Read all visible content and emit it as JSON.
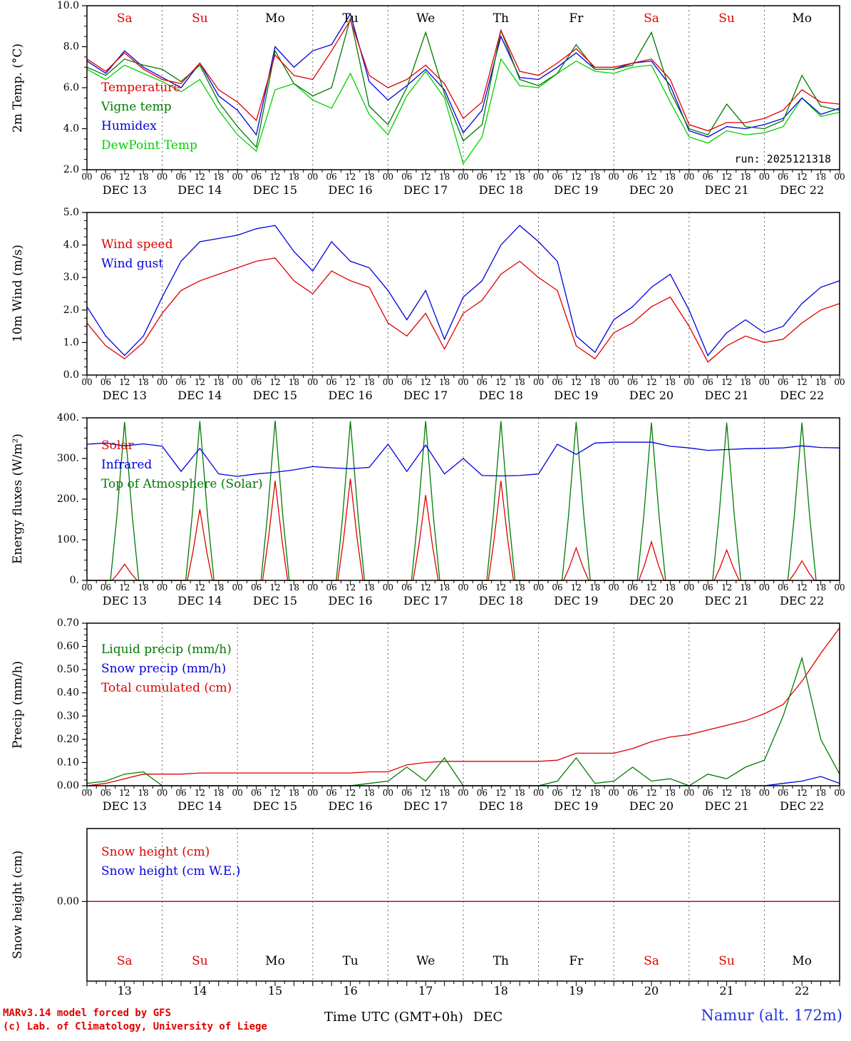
{
  "run_label": "run: 2025121318",
  "footer": {
    "credit_line1": "MARv3.14 model forced by GFS",
    "credit_line2": "(c) Lab. of Climatology, University of Liege",
    "xlabel": "Time UTC (GMT+0h)",
    "xlabel_month": "DEC",
    "station": "Namur (alt. 172m)"
  },
  "colors": {
    "red": "#e00000",
    "blue": "#0000dd",
    "dark_green": "#007a00",
    "bright_green": "#00d000",
    "weekend": "#dd0000",
    "station_blue": "#2233dd"
  },
  "day_names": [
    "Sa",
    "Su",
    "Mo",
    "Tu",
    "We",
    "Th",
    "Fr",
    "Sa",
    "Su",
    "Mo"
  ],
  "weekend_flags": [
    true,
    true,
    false,
    false,
    false,
    false,
    false,
    true,
    true,
    false
  ],
  "day_dates": [
    "DEC 13",
    "DEC 14",
    "DEC 15",
    "DEC 16",
    "DEC 17",
    "DEC 18",
    "DEC 19",
    "DEC 20",
    "DEC 21",
    "DEC 22"
  ],
  "day_numbers": [
    "13",
    "14",
    "15",
    "16",
    "17",
    "18",
    "19",
    "20",
    "21",
    "22"
  ],
  "hour_tick_labels": [
    "00",
    "06",
    "12",
    "18"
  ],
  "x_hours": [
    0,
    6,
    12,
    18,
    24,
    30,
    36,
    42,
    48,
    54,
    60,
    66,
    72,
    78,
    84,
    90,
    96,
    102,
    108,
    114,
    120,
    126,
    132,
    138,
    144,
    150,
    156,
    162,
    168,
    174,
    180,
    186,
    192,
    198,
    204,
    210,
    216,
    222,
    228,
    234,
    240
  ],
  "chart_data": [
    {
      "name": "temperature",
      "type": "line",
      "ylabel": "2m Temp. (°C)",
      "ylim": [
        2,
        10
      ],
      "yticks": [
        2,
        4,
        6,
        8,
        10
      ],
      "ytick_labels": [
        "2.0",
        "4.0",
        "6.0",
        "8.0",
        "10.0"
      ],
      "yminor": 0.5,
      "x_range_hours": [
        0,
        240
      ],
      "grid": "dashed-day-boundaries",
      "legend_position": "mid-left",
      "series": [
        {
          "name": "Temperature",
          "color": "#e00000",
          "values": [
            7.4,
            6.8,
            7.7,
            6.9,
            6.4,
            6.2,
            7.2,
            5.9,
            5.3,
            4.4,
            7.6,
            6.6,
            6.4,
            7.8,
            9.3,
            6.6,
            6.0,
            6.4,
            7.1,
            6.2,
            4.5,
            5.3,
            8.8,
            6.8,
            6.6,
            7.2,
            7.9,
            7.0,
            7.0,
            7.2,
            7.4,
            6.4,
            4.2,
            3.9,
            4.3,
            4.3,
            4.5,
            4.9,
            5.9,
            5.3,
            5.2
          ]
        },
        {
          "name": "Vigne temp",
          "color": "#007a00",
          "values": [
            7.0,
            6.6,
            7.4,
            7.1,
            6.9,
            6.3,
            7.1,
            5.3,
            4.1,
            3.1,
            7.8,
            6.2,
            5.6,
            6.0,
            9.4,
            5.1,
            4.2,
            6.0,
            8.7,
            5.7,
            3.4,
            4.2,
            8.8,
            6.4,
            6.1,
            6.7,
            8.1,
            6.9,
            6.9,
            7.1,
            8.7,
            5.8,
            4.0,
            3.7,
            5.2,
            4.1,
            4.0,
            4.4,
            6.6,
            5.1,
            4.9
          ]
        },
        {
          "name": "Humidex",
          "color": "#0000dd",
          "values": [
            7.3,
            6.7,
            7.8,
            7.0,
            6.5,
            6.0,
            7.2,
            5.6,
            4.9,
            3.7,
            8.0,
            7.0,
            7.8,
            8.1,
            9.6,
            6.3,
            5.4,
            6.1,
            6.9,
            5.9,
            3.8,
            4.9,
            8.5,
            6.5,
            6.4,
            7.0,
            7.7,
            6.9,
            6.9,
            7.2,
            7.3,
            6.1,
            3.9,
            3.6,
            4.1,
            4.0,
            4.2,
            4.5,
            5.5,
            4.7,
            5.0
          ]
        },
        {
          "name": "DewPoint Temp",
          "color": "#00d000",
          "values": [
            6.9,
            6.4,
            7.1,
            6.7,
            6.3,
            5.8,
            6.4,
            4.9,
            3.7,
            2.9,
            5.9,
            6.2,
            5.4,
            5.0,
            6.7,
            4.7,
            3.7,
            5.6,
            6.8,
            5.5,
            2.3,
            3.6,
            7.4,
            6.1,
            6.0,
            6.7,
            7.3,
            6.8,
            6.7,
            7.0,
            7.1,
            5.3,
            3.6,
            3.3,
            3.9,
            3.7,
            3.8,
            4.1,
            5.5,
            4.6,
            4.8
          ]
        }
      ]
    },
    {
      "name": "wind",
      "type": "line",
      "ylabel": "10m Wind (m/s)",
      "ylim": [
        0,
        5
      ],
      "yticks": [
        0,
        1,
        2,
        3,
        4,
        5
      ],
      "ytick_labels": [
        "0.0",
        "1.0",
        "2.0",
        "3.0",
        "4.0",
        "5.0"
      ],
      "yminor": 0.25,
      "x_range_hours": [
        0,
        240
      ],
      "grid": "dashed-day-boundaries",
      "legend_position": "top-left",
      "series": [
        {
          "name": "Wind speed",
          "color": "#e00000",
          "values": [
            1.6,
            0.9,
            0.5,
            1.0,
            1.9,
            2.6,
            2.9,
            3.1,
            3.3,
            3.5,
            3.6,
            2.9,
            2.5,
            3.2,
            2.9,
            2.7,
            1.6,
            1.2,
            1.9,
            0.8,
            1.9,
            2.3,
            3.1,
            3.5,
            3.0,
            2.6,
            0.9,
            0.5,
            1.3,
            1.6,
            2.1,
            2.4,
            1.5,
            0.4,
            0.9,
            1.2,
            1.0,
            1.1,
            1.6,
            2.0,
            2.2
          ]
        },
        {
          "name": "Wind gust",
          "color": "#0000dd",
          "values": [
            2.1,
            1.2,
            0.6,
            1.2,
            2.4,
            3.5,
            4.1,
            4.2,
            4.3,
            4.5,
            4.6,
            3.8,
            3.2,
            4.1,
            3.5,
            3.3,
            2.6,
            1.7,
            2.6,
            1.1,
            2.4,
            2.9,
            4.0,
            4.6,
            4.1,
            3.5,
            1.2,
            0.7,
            1.7,
            2.1,
            2.7,
            3.1,
            2.0,
            0.6,
            1.3,
            1.7,
            1.3,
            1.5,
            2.2,
            2.7,
            2.9
          ]
        }
      ]
    },
    {
      "name": "energy",
      "type": "line",
      "ylabel": "Energy fluxes (W/m²)",
      "ylim": [
        0,
        400
      ],
      "yticks": [
        0,
        100,
        200,
        300,
        400
      ],
      "ytick_labels": [
        "0.",
        "100.",
        "200.",
        "300.",
        "400."
      ],
      "yminor": 25,
      "x_range_hours": [
        0,
        240
      ],
      "grid": "dashed-day-boundaries",
      "legend_position": "top-left",
      "series": [
        {
          "name": "Solar",
          "color": "#e00000",
          "daily_peaks": [
            40,
            175,
            245,
            250,
            210,
            245,
            80,
            95,
            75,
            48
          ],
          "bell_halfwidth_hours": 4.0
        },
        {
          "name": "Infrared",
          "color": "#0000dd",
          "values": [
            335,
            338,
            331,
            336,
            330,
            268,
            325,
            262,
            256,
            262,
            266,
            272,
            280,
            277,
            275,
            278,
            335,
            268,
            333,
            262,
            300,
            258,
            257,
            258,
            262,
            335,
            310,
            338,
            340,
            340,
            340,
            330,
            326,
            320,
            322,
            324,
            325,
            326,
            331,
            327,
            326
          ]
        },
        {
          "name": "Top of Atmosphere (Solar)",
          "color": "#007a00",
          "daily_peaks": [
            390,
            392,
            393,
            392,
            392,
            392,
            390,
            388,
            388,
            388
          ],
          "bell_halfwidth_hours": 4.5
        }
      ]
    },
    {
      "name": "precip",
      "type": "line",
      "ylabel": "Precip (mm/h)",
      "ylim": [
        0,
        0.7
      ],
      "yticks": [
        0,
        0.1,
        0.2,
        0.3,
        0.4,
        0.5,
        0.6,
        0.7
      ],
      "ytick_labels": [
        "0.00",
        "0.10",
        "0.20",
        "0.30",
        "0.40",
        "0.50",
        "0.60",
        "0.70"
      ],
      "yminor": 0.025,
      "x_range_hours": [
        0,
        240
      ],
      "grid": "dashed-day-boundaries",
      "legend_position": "top-left",
      "series": [
        {
          "name": "Liquid precip (mm/h)",
          "color": "#007a00",
          "values": [
            0.01,
            0.02,
            0.05,
            0.06,
            0,
            0,
            0,
            0,
            0,
            0,
            0,
            0,
            0,
            0,
            0,
            0.01,
            0.02,
            0.08,
            0.02,
            0.12,
            0,
            0,
            0,
            0,
            0,
            0.02,
            0.12,
            0.01,
            0.02,
            0.08,
            0.02,
            0.03,
            0,
            0.05,
            0.03,
            0.08,
            0.11,
            0.3,
            0.55,
            0.2,
            0.05
          ]
        },
        {
          "name": "Snow precip (mm/h)",
          "color": "#0000dd",
          "values": [
            0,
            0,
            0,
            0,
            0,
            0,
            0,
            0,
            0,
            0,
            0,
            0,
            0,
            0,
            0,
            0,
            0,
            0,
            0,
            0,
            0,
            0,
            0,
            0,
            0,
            0,
            0,
            0,
            0,
            0,
            0,
            0,
            0,
            0,
            0,
            0,
            0,
            0.01,
            0.02,
            0.04,
            0.01
          ]
        },
        {
          "name": "Total cumulated (cm)",
          "color": "#e00000",
          "values": [
            0.0,
            0.01,
            0.03,
            0.05,
            0.05,
            0.05,
            0.055,
            0.055,
            0.055,
            0.055,
            0.055,
            0.055,
            0.055,
            0.055,
            0.055,
            0.06,
            0.06,
            0.09,
            0.1,
            0.105,
            0.105,
            0.105,
            0.105,
            0.105,
            0.105,
            0.11,
            0.14,
            0.14,
            0.14,
            0.16,
            0.19,
            0.21,
            0.22,
            0.24,
            0.26,
            0.28,
            0.31,
            0.35,
            0.45,
            0.57,
            0.68
          ]
        }
      ]
    },
    {
      "name": "snow",
      "type": "line",
      "ylabel": "Snow height (cm)",
      "ylim": [
        -0.6,
        0.55
      ],
      "yticks": [
        0
      ],
      "ytick_labels": [
        "0.00"
      ],
      "yminor": null,
      "x_range_hours": [
        0,
        240
      ],
      "grid": "dashed-day-boundaries",
      "legend_position": "top-left",
      "series": [
        {
          "name": "Snow height (cm)",
          "color": "#e00000",
          "x": [
            0,
            240
          ],
          "values": [
            0,
            0
          ]
        },
        {
          "name": "Snow height (cm W.E.)",
          "color": "#0000dd",
          "x": [
            0,
            240
          ],
          "values": [
            0,
            0
          ]
        }
      ]
    }
  ]
}
